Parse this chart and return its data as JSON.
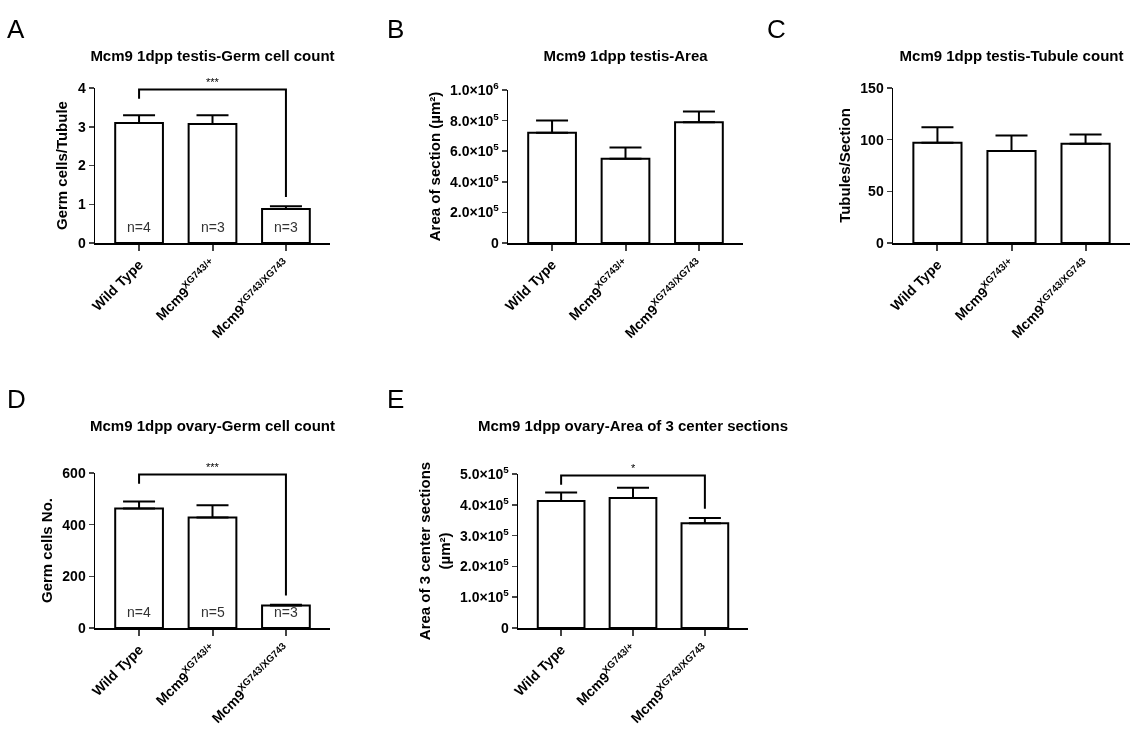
{
  "chart_data": [
    {
      "type": "bar",
      "title": "Mcm9 1dpp testis-Germ cell count",
      "ylabel": "Germ cells/Tubule",
      "categories": [
        "Wild Type",
        "Mcm9$^{XG743/+}$",
        "Mcm9$^{XG743/XG743}$"
      ],
      "values": [
        3.1,
        3.07,
        0.88
      ],
      "errors": [
        [
          3.1,
          3.3
        ],
        [
          3.07,
          3.3
        ],
        [
          0.88,
          0.95
        ]
      ],
      "color": "#ffffff",
      "ylim": [
        0,
        4
      ],
      "yticks": [
        0,
        1,
        2,
        3,
        4
      ],
      "grid": false,
      "legend": false,
      "annotations": [
        "A",
        "***",
        "n=4",
        "n=3",
        "n=3"
      ]
    },
    {
      "type": "bar",
      "title": "Mcm9 1dpp testis-Area",
      "ylabel": "Area of section (µm²)",
      "categories": [
        "Wild Type",
        "Mcm9$^{XG743/+}$",
        "Mcm9$^{XG743/XG743}$"
      ],
      "values": [
        720000,
        550000,
        790000
      ],
      "errors": [
        [
          720000,
          800000
        ],
        [
          550000,
          625000
        ],
        [
          790000,
          860000
        ]
      ],
      "color": "#ffffff",
      "ylim": [
        0,
        1000000
      ],
      "yticks": [
        0,
        {
          "value": 200000,
          "label": "2.0×10$^{5}$"
        },
        {
          "value": 400000,
          "label": "4.0×10$^{5}$"
        },
        {
          "value": 600000,
          "label": "6.0×10$^{5}$"
        },
        {
          "value": 800000,
          "label": "8.0×10$^{5}$"
        },
        {
          "value": 1000000,
          "label": "1.0×10$^{6}$"
        }
      ],
      "grid": false,
      "legend": false,
      "annotations": [
        "B"
      ]
    },
    {
      "type": "bar",
      "title": "Mcm9 1dpp testis-Tubule count",
      "ylabel": "Tubules/Section",
      "categories": [
        "Wild Type",
        "Mcm9$^{XG743/+}$",
        "Mcm9$^{XG743/XG743}$"
      ],
      "values": [
        97,
        89,
        96
      ],
      "errors": [
        [
          97,
          112
        ],
        [
          89,
          104
        ],
        [
          96,
          105
        ]
      ],
      "color": "#ffffff",
      "ylim": [
        0,
        150
      ],
      "yticks": [
        0,
        50,
        100,
        150
      ],
      "grid": false,
      "legend": false,
      "annotations": [
        "C"
      ]
    },
    {
      "type": "bar",
      "title": "Mcm9 1dpp ovary-Germ cell count",
      "ylabel": "Germ cells No.",
      "categories": [
        "Wild Type",
        "Mcm9$^{XG743/+}$",
        "Mcm9$^{XG743/XG743}$"
      ],
      "values": [
        463,
        428,
        87
      ],
      "errors": [
        [
          463,
          490
        ],
        [
          428,
          475
        ],
        [
          87,
          90
        ]
      ],
      "color": "#ffffff",
      "ylim": [
        0,
        600
      ],
      "yticks": [
        0,
        200,
        400,
        600
      ],
      "grid": false,
      "legend": false,
      "annotations": [
        "D",
        "***",
        "n=4",
        "n=5",
        "n=3"
      ]
    },
    {
      "type": "bar",
      "title": "Mcm9 1dpp ovary-Area of 3 center sections",
      "ylabel": "Area of 3 center sections\n(µm²)",
      "categories": [
        "Wild Type",
        "Mcm9$^{XG743/+}$",
        "Mcm9$^{XG743/XG743}$"
      ],
      "values": [
        412000,
        422000,
        340000
      ],
      "errors": [
        [
          412000,
          440000
        ],
        [
          422000,
          455000
        ],
        [
          340000,
          357000
        ]
      ],
      "color": "#ffffff",
      "ylim": [
        0,
        500000
      ],
      "yticks": [
        0,
        {
          "value": 100000,
          "label": "1.0×10$^{5}$"
        },
        {
          "value": 200000,
          "label": "2.0×10$^{5}$"
        },
        {
          "value": 300000,
          "label": "3.0×10$^{5}$"
        },
        {
          "value": 400000,
          "label": "4.0×10$^{5}$"
        },
        {
          "value": 500000,
          "label": "5.0×10$^{5}$"
        }
      ],
      "grid": false,
      "legend": false,
      "annotations": [
        "E",
        "*"
      ]
    }
  ]
}
